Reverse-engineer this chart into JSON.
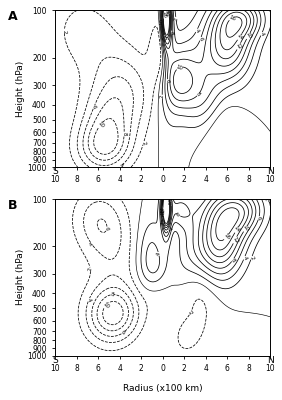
{
  "title_A": "A",
  "title_B": "B",
  "xlabel": "Radius (x100 km)",
  "ylabel": "Height (hPa)",
  "x_ticks": [
    -10,
    -8,
    -6,
    -4,
    -2,
    0,
    2,
    4,
    6,
    8,
    10
  ],
  "x_tick_labels": [
    "10",
    "8",
    "6",
    "4",
    "2",
    "0",
    "2",
    "4",
    "6",
    "8",
    "10"
  ],
  "y_ticks": [
    100,
    200,
    300,
    400,
    500,
    600,
    700,
    800,
    900,
    1000
  ],
  "contour_levels": [
    -10,
    -8,
    -6,
    -4,
    -2,
    0,
    2,
    4,
    6,
    8,
    10,
    12,
    14,
    16
  ],
  "s_label": "S",
  "n_label": "N",
  "figsize": [
    2.82,
    4.0
  ],
  "dpi": 100
}
